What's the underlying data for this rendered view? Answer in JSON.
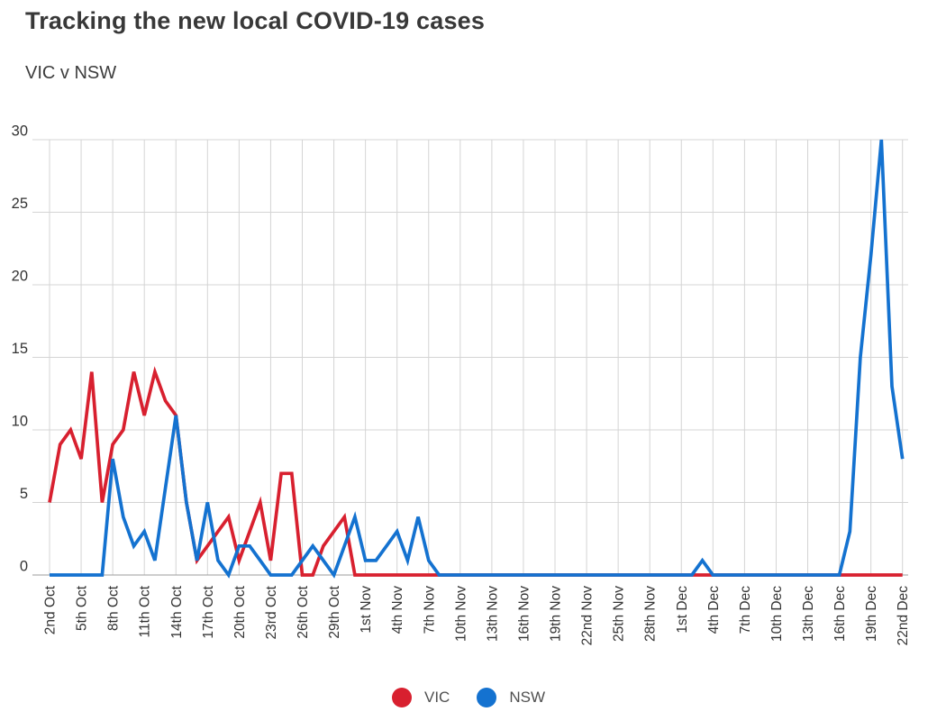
{
  "header": {
    "title": "Tracking the new local COVID-19 cases",
    "subtitle": "VIC v NSW"
  },
  "legend": [
    {
      "label": "VIC",
      "color": "#d8202f"
    },
    {
      "label": "NSW",
      "color": "#1472d0"
    }
  ],
  "colors": {
    "vic": "#d8202f",
    "nsw": "#1472d0",
    "gridline": "#d4d4d4",
    "axis_line": "#9e9e9e",
    "tick_text": "#333333"
  },
  "chart_data": {
    "type": "line",
    "title": "Tracking the new local COVID-19 cases",
    "subtitle": "VIC v NSW",
    "ylabel": "",
    "xlabel": "",
    "ylim": [
      0,
      30
    ],
    "y_ticks": [
      0,
      5,
      10,
      15,
      20,
      25,
      30
    ],
    "grid": true,
    "legend_position": "bottom",
    "x_unit": "day",
    "x_range": "2nd Oct to 22nd Dec (daily points)",
    "x_ticks_every": 3,
    "x_tick_labels": [
      "2nd Oct",
      "5th Oct",
      "8th Oct",
      "11th Oct",
      "14th Oct",
      "17th Oct",
      "20th Oct",
      "23rd Oct",
      "26th Oct",
      "29th Oct",
      "1st Nov",
      "4th Nov",
      "7th Nov",
      "10th Nov",
      "13th Nov",
      "16th Nov",
      "19th Nov",
      "22nd Nov",
      "25th Nov",
      "28th Nov",
      "1st Dec",
      "4th Dec",
      "7th Dec",
      "10th Dec",
      "13th Dec",
      "16th Dec",
      "19th Dec",
      "22nd Dec"
    ],
    "series": [
      {
        "name": "VIC",
        "color": "#d8202f",
        "values": [
          5,
          9,
          10,
          8,
          14,
          5,
          9,
          10,
          14,
          11,
          14,
          12,
          11,
          5,
          1,
          2,
          3,
          4,
          1,
          3,
          5,
          1,
          7,
          7,
          0,
          0,
          2,
          3,
          4,
          0,
          0,
          0,
          0,
          0,
          0,
          0,
          0,
          0,
          0,
          0,
          0,
          0,
          0,
          0,
          0,
          0,
          0,
          0,
          0,
          0,
          0,
          0,
          0,
          0,
          0,
          0,
          0,
          0,
          0,
          0,
          0,
          0,
          0,
          0,
          0,
          0,
          0,
          0,
          0,
          0,
          0,
          0,
          0,
          0,
          0,
          0,
          0,
          0,
          0,
          0,
          0,
          0
        ]
      },
      {
        "name": "NSW",
        "color": "#1472d0",
        "values": [
          0,
          0,
          0,
          0,
          0,
          0,
          8,
          4,
          2,
          3,
          1,
          6,
          11,
          5,
          1,
          5,
          1,
          0,
          2,
          2,
          1,
          0,
          0,
          0,
          1,
          2,
          1,
          0,
          2,
          4,
          1,
          1,
          2,
          3,
          1,
          4,
          1,
          0,
          0,
          0,
          0,
          0,
          0,
          0,
          0,
          0,
          0,
          0,
          0,
          0,
          0,
          0,
          0,
          0,
          0,
          0,
          0,
          0,
          0,
          0,
          0,
          0,
          1,
          0,
          0,
          0,
          0,
          0,
          0,
          0,
          0,
          0,
          0,
          0,
          0,
          0,
          3,
          15,
          22,
          30,
          13,
          8
        ]
      }
    ]
  }
}
